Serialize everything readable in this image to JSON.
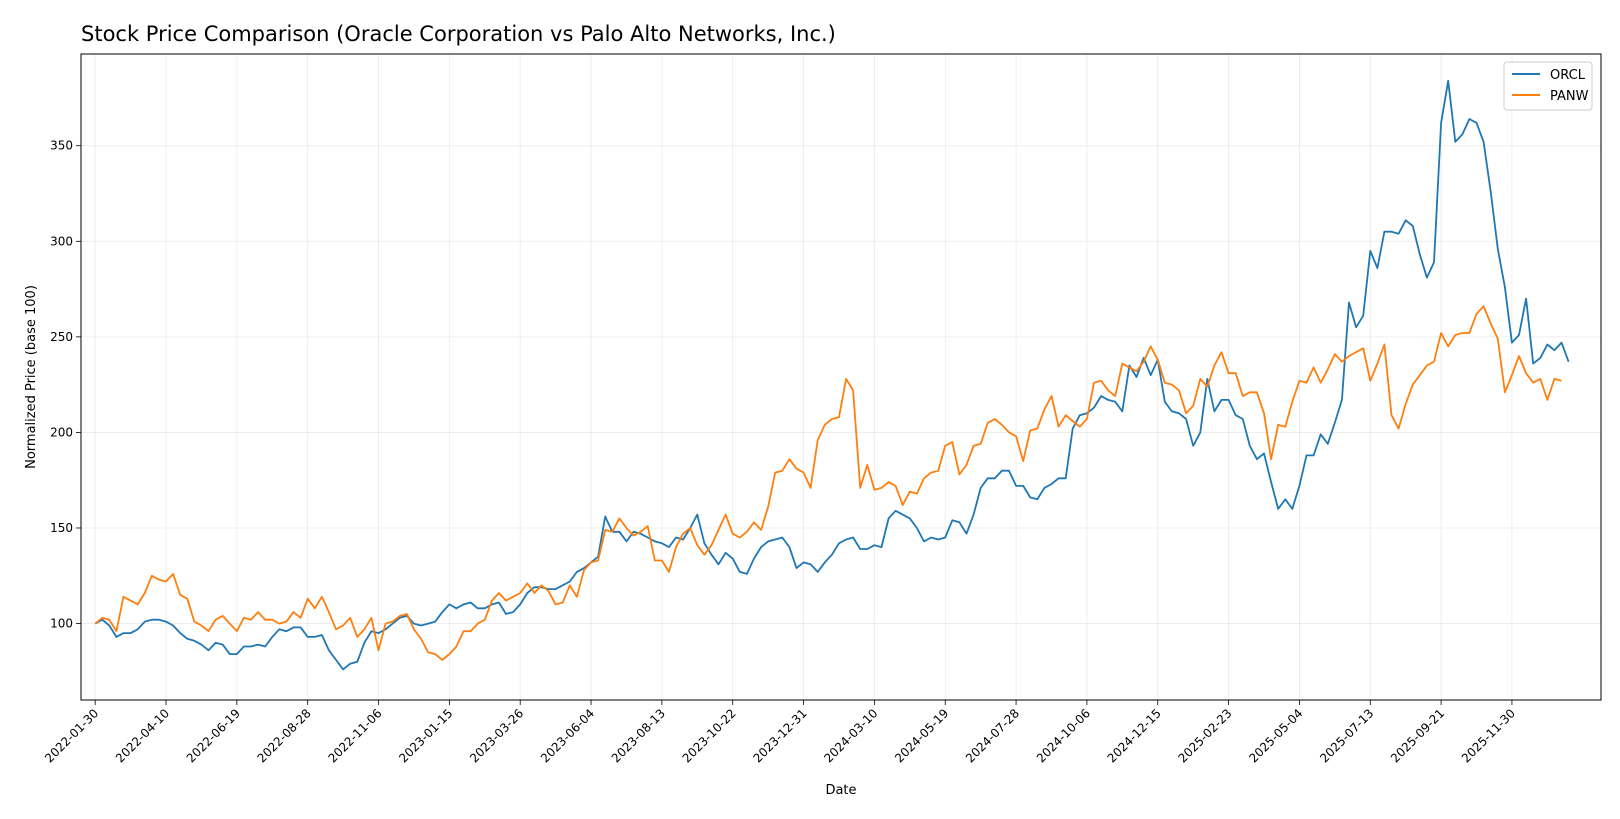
{
  "chart_data": {
    "type": "line",
    "title": "Stock Price Comparison (Oracle Corporation vs Palo Alto Networks, Inc.)",
    "xlabel": "Date",
    "ylabel": "Normalized Price (base 100)",
    "ylim": [
      60,
      398
    ],
    "xlim": [
      "2022-01-16",
      "2026-02-26"
    ],
    "grid": true,
    "legend_position": "top-right",
    "x_ticks": [
      "2022-01-30",
      "2022-04-10",
      "2022-06-19",
      "2022-08-28",
      "2022-11-06",
      "2023-01-15",
      "2023-03-26",
      "2023-06-04",
      "2023-08-13",
      "2023-10-22",
      "2023-12-31",
      "2024-03-10",
      "2024-05-19",
      "2024-07-28",
      "2024-10-06",
      "2024-12-15",
      "2025-02-23",
      "2025-05-04",
      "2025-07-13",
      "2025-09-21",
      "2025-11-30"
    ],
    "y_ticks": [
      100,
      150,
      200,
      250,
      300,
      350
    ],
    "start_date": "2022-01-30",
    "step_days": 7,
    "series": [
      {
        "name": "ORCL",
        "color": "#1f77b4",
        "values": [
          100,
          102,
          99,
          93,
          95,
          95,
          97,
          101,
          102,
          102,
          101,
          99,
          95,
          92,
          91,
          89,
          86,
          90,
          89,
          84,
          84,
          88,
          88,
          89,
          88,
          93,
          97,
          96,
          98,
          98,
          93,
          93,
          94,
          86,
          81,
          76,
          79,
          80,
          90,
          96,
          95,
          97,
          100,
          103,
          104,
          100,
          99,
          100,
          101,
          106,
          110,
          108,
          110,
          111,
          108,
          108,
          110,
          111,
          105,
          106,
          110,
          116,
          119,
          119,
          118,
          118,
          120,
          122,
          127,
          129,
          132,
          135,
          156,
          148,
          148,
          143,
          148,
          147,
          145,
          143,
          142,
          140,
          145,
          144,
          150,
          157,
          142,
          136,
          131,
          137,
          134,
          127,
          126,
          134,
          140,
          143,
          144,
          145,
          140,
          129,
          132,
          131,
          127,
          132,
          136,
          142,
          144,
          145,
          139,
          139,
          141,
          140,
          155,
          159,
          157,
          155,
          150,
          143,
          145,
          144,
          145,
          154,
          153,
          147,
          157,
          171,
          176,
          176,
          180,
          180,
          172,
          172,
          166,
          165,
          171,
          173,
          176,
          176,
          202,
          209,
          210,
          213,
          219,
          217,
          216,
          211,
          235,
          229,
          239,
          230,
          238,
          216,
          211,
          210,
          207,
          193,
          200,
          228,
          211,
          217,
          217,
          209,
          207,
          193,
          186,
          189,
          174,
          160,
          165,
          160,
          172,
          188,
          188,
          199,
          194,
          205,
          217,
          268,
          255,
          261,
          295,
          286,
          305,
          305,
          304,
          311,
          308,
          293,
          281,
          289,
          362,
          384,
          352,
          356,
          364,
          362,
          352,
          326,
          296,
          276,
          247,
          251,
          270,
          236,
          239,
          246,
          243,
          247,
          237
        ]
      },
      {
        "name": "PANW",
        "color": "#ff7f0e",
        "values": [
          100,
          103,
          102,
          96,
          114,
          112,
          110,
          116,
          125,
          123,
          122,
          126,
          115,
          113,
          101,
          99,
          96,
          102,
          104,
          100,
          96,
          103,
          102,
          106,
          102,
          102,
          100,
          101,
          106,
          103,
          113,
          108,
          114,
          106,
          97,
          99,
          103,
          93,
          97,
          103,
          86,
          100,
          101,
          104,
          105,
          97,
          92,
          85,
          84,
          81,
          84,
          88,
          96,
          96,
          100,
          102,
          112,
          116,
          112,
          114,
          116,
          121,
          116,
          120,
          117,
          110,
          111,
          120,
          114,
          128,
          132,
          133,
          149,
          148,
          155,
          150,
          146,
          148,
          151,
          133,
          133,
          127,
          140,
          147,
          150,
          141,
          136,
          141,
          149,
          157,
          147,
          145,
          148,
          153,
          149,
          161,
          179,
          180,
          186,
          181,
          179,
          171,
          196,
          204,
          207,
          208,
          228,
          222,
          171,
          183,
          170,
          171,
          174,
          172,
          162,
          169,
          168,
          176,
          179,
          180,
          193,
          195,
          178,
          183,
          193,
          194,
          205,
          207,
          204,
          200,
          198,
          185,
          201,
          202,
          212,
          219,
          203,
          209,
          206,
          203,
          207,
          226,
          227,
          222,
          219,
          236,
          234,
          232,
          237,
          245,
          238,
          226,
          225,
          222,
          210,
          214,
          228,
          224,
          235,
          242,
          231,
          231,
          219,
          221,
          221,
          210,
          186,
          204,
          203,
          216,
          227,
          226,
          234,
          226,
          233,
          241,
          237,
          240,
          242,
          244,
          227,
          236,
          246,
          209,
          202,
          215,
          225,
          230,
          235,
          237,
          252,
          245,
          251,
          252,
          252,
          262,
          266,
          257,
          249,
          221,
          230,
          240,
          231,
          226,
          228,
          217,
          228,
          227
        ]
      }
    ]
  }
}
